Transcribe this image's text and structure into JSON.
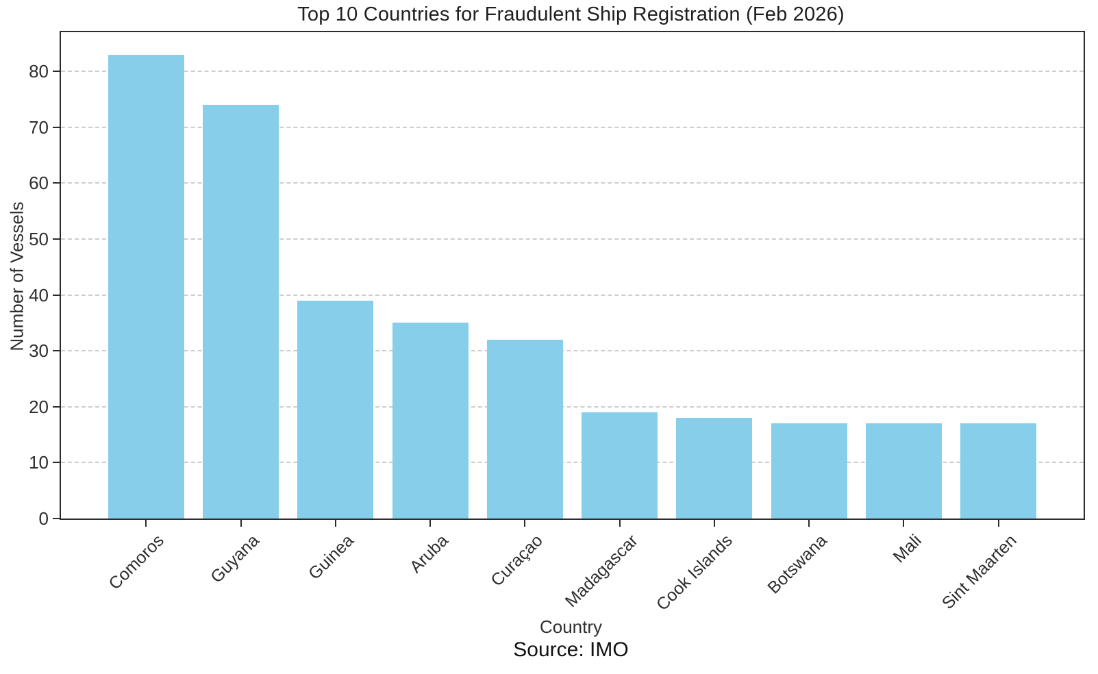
{
  "chart_data": {
    "type": "bar",
    "title": "Top 10 Countries for Fraudulent Ship Registration (Feb 2026)",
    "xlabel": "Country",
    "ylabel": "Number of Vessels",
    "source_note": "Source: IMO",
    "categories": [
      "Comoros",
      "Guyana",
      "Guinea",
      "Aruba",
      "Curaçao",
      "Madagascar",
      "Cook Islands",
      "Botswana",
      "Mali",
      "Sint Maarten"
    ],
    "values": [
      83,
      74,
      39,
      35,
      32,
      19,
      18,
      17,
      17,
      17
    ],
    "yticks": [
      0,
      10,
      20,
      30,
      40,
      50,
      60,
      70,
      80
    ],
    "ylim": [
      0,
      87
    ],
    "bar_color": "#87CEEB",
    "grid": "horizontal-dashed",
    "legend_position": "none"
  }
}
